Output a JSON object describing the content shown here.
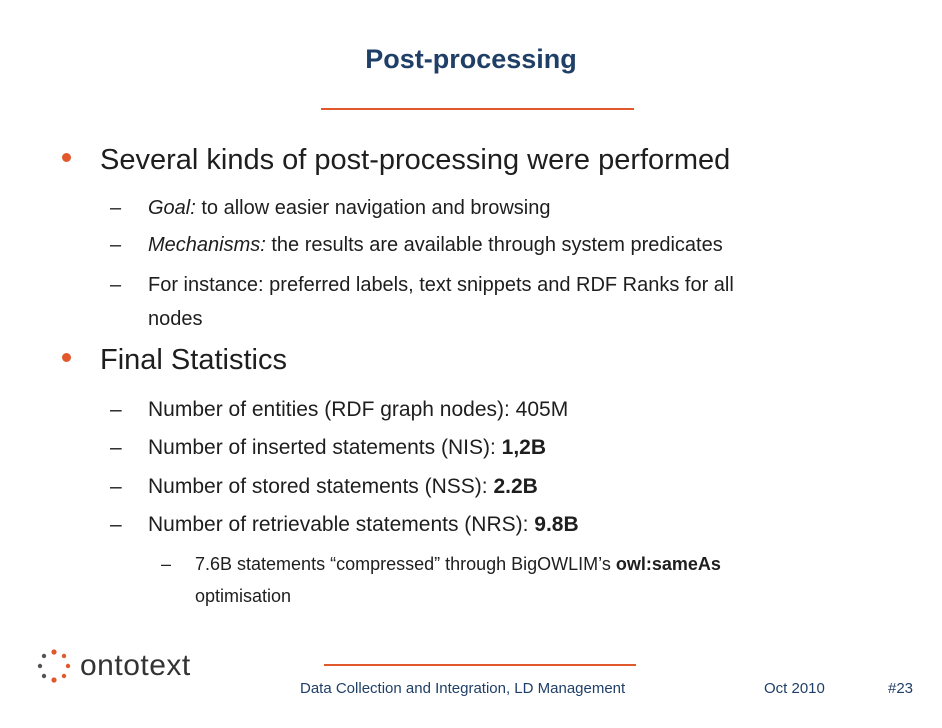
{
  "slide": {
    "title": "Post-processing"
  },
  "bullets": {
    "b1": "Several kinds of post-processing were performed",
    "b1_sub": [
      {
        "label": "Goal:",
        "text": " to allow easier navigation and browsing"
      },
      {
        "label": "Mechanisms:",
        "text": " the results are available through system predicates"
      },
      {
        "text_line1": "For instance: preferred labels, text snippets and RDF Ranks for all",
        "text_line2": "nodes"
      }
    ],
    "b2": "Final Statistics",
    "b2_sub": [
      {
        "text": "Number of entities (RDF graph nodes): 405M"
      },
      {
        "text": "Number of inserted statements (NIS): ",
        "value": "1,2B"
      },
      {
        "text": "Number of stored statements (NSS): ",
        "value": "2.2B"
      },
      {
        "text": "Number of retrievable statements (NRS): ",
        "value": "9.8B"
      }
    ],
    "b2_sub_sub": {
      "text": "7.6B statements “compressed” through BigOWLIM’s ",
      "bold": "owl:sameAs",
      "line2": "optimisation"
    },
    "dash": "–"
  },
  "footer": {
    "logo_text": "ontotext",
    "center": "Data Collection and Integration, LD Management",
    "date": "Oct 2010",
    "page": "#23"
  },
  "colors": {
    "title": "#1f3f66",
    "accent": "#e0582b"
  }
}
